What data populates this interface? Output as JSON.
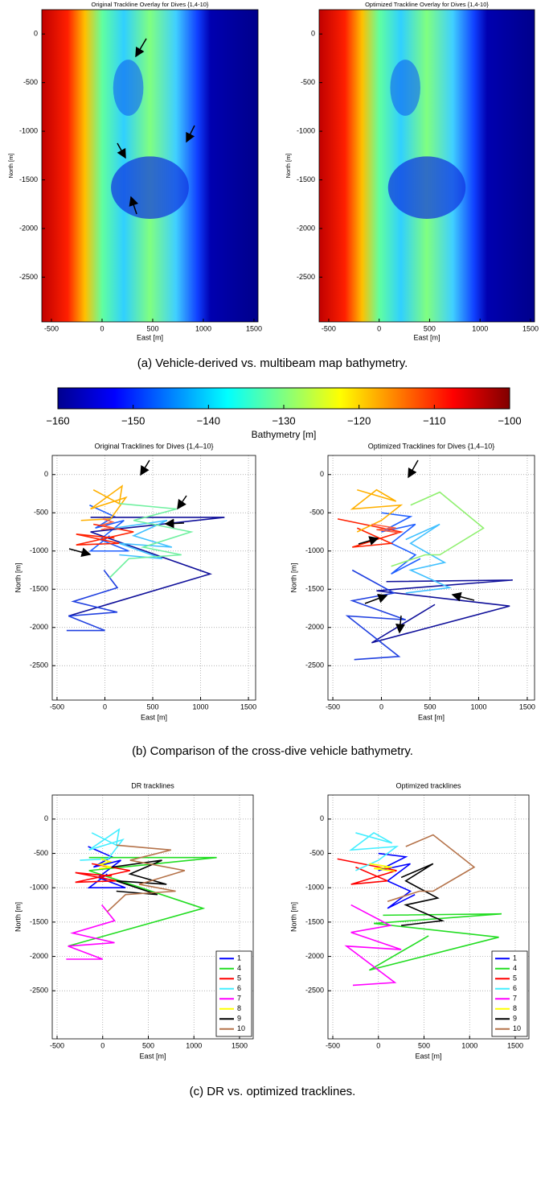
{
  "captions": [
    "(a)  Vehicle-derived vs. multibeam map bathymetry.",
    "(b)  Comparison of the cross-dive vehicle bathymetry.",
    "(c)  DR vs. optimized tracklines."
  ],
  "chart_data": [
    {
      "type": "map",
      "title": "Original Trackline Overlay for Dives {1,4-10}",
      "xlabel": "East [m]",
      "ylabel": "North [m]",
      "xlim": [
        -595,
        1540
      ],
      "ylim": [
        -2960,
        250
      ],
      "xticks": [
        -500,
        0,
        500,
        1000,
        1500
      ],
      "yticks": [
        0,
        -500,
        -1000,
        -1500,
        -2000,
        -2500
      ]
    },
    {
      "type": "map",
      "title": "Optimized Trackline Overlay for Dives {1,4-10}",
      "xlabel": "East [m]",
      "ylabel": "North [m]",
      "xlim": [
        -595,
        1540
      ],
      "ylim": [
        -2960,
        250
      ],
      "xticks": [
        -500,
        0,
        500,
        1000,
        1500
      ],
      "yticks": [
        0,
        -500,
        -1000,
        -1500,
        -2000,
        -2500
      ]
    },
    {
      "type": "colorbar",
      "xlabel": "Bathymetry [m]",
      "xlim": [
        -160,
        -100
      ],
      "xticks": [
        {
          "value": -160,
          "label": "−160"
        },
        {
          "value": -150,
          "label": "−150"
        },
        {
          "value": -140,
          "label": "−140"
        },
        {
          "value": -130,
          "label": "−130"
        },
        {
          "value": -120,
          "label": "−120"
        },
        {
          "value": -110,
          "label": "−110"
        },
        {
          "value": -100,
          "label": "−100"
        }
      ],
      "colors": [
        "#00008f",
        "#0000ff",
        "#0080ff",
        "#00ffff",
        "#80ff80",
        "#ffff00",
        "#ff8000",
        "#ff0000",
        "#800000"
      ]
    },
    {
      "type": "line",
      "title": "Original Tracklines for Dives {1,4–10}",
      "xlabel": "East [m]",
      "ylabel": "North [m]",
      "grid": true,
      "xlim": [
        -550,
        1575
      ],
      "ylim": [
        -2950,
        250
      ],
      "xticks": [
        -500,
        0,
        500,
        1000,
        1500
      ],
      "yticks": [
        0,
        -500,
        -1000,
        -1500,
        -2000,
        -2500
      ],
      "series": [
        {
          "color": "#2060ff",
          "x": [
            -160,
            100,
            -100,
            200,
            -50,
            250,
            -150,
            50
          ],
          "values": [
            -400,
            -550,
            -700,
            -600,
            -850,
            -1000,
            -1000,
            -800
          ]
        },
        {
          "color": "#10109a",
          "x": [
            -150,
            1250,
            -150,
            1100,
            -380
          ],
          "values": [
            -560,
            -560,
            -750,
            -1300,
            -1850
          ]
        },
        {
          "color": "#ff2000",
          "x": [
            -120,
            300,
            -300,
            150,
            -300,
            100
          ],
          "values": [
            -650,
            -750,
            -920,
            -900,
            -780,
            -830
          ]
        },
        {
          "color": "#ffb000",
          "x": [
            -120,
            150,
            180,
            -150,
            220,
            60,
            -250
          ],
          "values": [
            -200,
            -380,
            -150,
            -450,
            -300,
            -580,
            -600
          ]
        },
        {
          "color": "#2040e0",
          "x": [
            -10,
            130,
            -330,
            130,
            -380,
            0,
            -400
          ],
          "values": [
            -1250,
            -1480,
            -1660,
            -1800,
            -1850,
            -2040,
            -2040
          ]
        },
        {
          "color": "#ff6040",
          "x": [
            -20,
            80,
            -30,
            90,
            -40
          ],
          "values": [
            -580,
            -620,
            -660,
            -700,
            -720
          ]
        },
        {
          "color": "#40c0ff",
          "x": [
            100,
            650,
            300,
            700,
            150,
            600,
            150
          ],
          "values": [
            -700,
            -600,
            -800,
            -950,
            -900,
            -1100,
            -1050
          ]
        },
        {
          "color": "#70f0a0",
          "x": [
            150,
            750,
            300,
            900,
            400,
            800,
            250,
            50
          ],
          "values": [
            -380,
            -450,
            -600,
            -750,
            -950,
            -1050,
            -1100,
            -1350
          ]
        }
      ]
    },
    {
      "type": "line",
      "title": "Optimized Tracklines for Dives {1,4–10}",
      "xlabel": "East [m]",
      "ylabel": "North [m]",
      "grid": true,
      "xlim": [
        -550,
        1575
      ],
      "ylim": [
        -2950,
        250
      ],
      "xticks": [
        -500,
        0,
        500,
        1000,
        1500
      ],
      "yticks": [
        0,
        -500,
        -1000,
        -1500,
        -2000,
        -2500
      ],
      "series": [
        {
          "color": "#2060ff",
          "x": [
            0,
            300,
            0,
            350,
            100,
            350,
            100,
            400
          ],
          "values": [
            -500,
            -550,
            -750,
            -650,
            -900,
            -1050,
            -1300,
            -1100
          ]
        },
        {
          "color": "#10109a",
          "x": [
            50,
            1350,
            -50,
            1320,
            -100,
            550
          ],
          "values": [
            -1400,
            -1380,
            -1520,
            -1720,
            -2200,
            -1700
          ]
        },
        {
          "color": "#ff2000",
          "x": [
            -450,
            200,
            -300,
            100,
            -250
          ],
          "values": [
            -580,
            -750,
            -950,
            -900,
            -700
          ]
        },
        {
          "color": "#ffb000",
          "x": [
            -250,
            150,
            -50,
            -300,
            200,
            0,
            -250
          ],
          "values": [
            -200,
            -350,
            -200,
            -450,
            -400,
            -600,
            -750
          ]
        },
        {
          "color": "#2040e0",
          "x": [
            -300,
            130,
            -300,
            250,
            -350,
            180,
            -280
          ],
          "values": [
            -1250,
            -1550,
            -1650,
            -1900,
            -1850,
            -2380,
            -2420
          ]
        },
        {
          "color": "#ff6040",
          "x": [
            -100,
            150,
            -50,
            180
          ],
          "values": [
            -650,
            -700,
            -720,
            -760
          ]
        },
        {
          "color": "#40c0ff",
          "x": [
            250,
            600,
            300,
            650,
            300,
            700,
            250
          ],
          "values": [
            -850,
            -650,
            -900,
            -1150,
            -1250,
            -1480,
            -1550
          ]
        },
        {
          "color": "#90f070",
          "x": [
            300,
            600,
            1050,
            600,
            450,
            100
          ],
          "values": [
            -400,
            -230,
            -700,
            -1050,
            -1050,
            -1200
          ]
        }
      ]
    },
    {
      "type": "line",
      "title": "DR tracklines",
      "xlabel": "East [m]",
      "ylabel": "North [m]",
      "grid": true,
      "legend": "lower right",
      "xlim": [
        -553,
        1650
      ],
      "ylim": [
        -3200,
        350
      ],
      "xticks": [
        -500,
        0,
        500,
        1000,
        1500
      ],
      "yticks": [
        0,
        -500,
        -1000,
        -1500,
        -2000,
        -2500
      ],
      "series": [
        {
          "name": "1",
          "color": "#0000ff",
          "x": [
            -160,
            100,
            -100,
            200,
            -50,
            250,
            -150,
            50
          ],
          "values": [
            -400,
            -550,
            -700,
            -600,
            -850,
            -1000,
            -1000,
            -800
          ]
        },
        {
          "name": "4",
          "color": "#22dd22",
          "x": [
            -150,
            1250,
            -150,
            1100,
            -380
          ],
          "values": [
            -560,
            -560,
            -750,
            -1300,
            -1850
          ]
        },
        {
          "name": "5",
          "color": "#ff0000",
          "x": [
            -120,
            300,
            -300,
            150,
            -300,
            100
          ],
          "values": [
            -650,
            -750,
            -920,
            -900,
            -780,
            -830
          ]
        },
        {
          "name": "6",
          "color": "#44eeff",
          "x": [
            -120,
            150,
            180,
            -150,
            220,
            60,
            -250
          ],
          "values": [
            -200,
            -380,
            -150,
            -450,
            -300,
            -580,
            -600
          ]
        },
        {
          "name": "7",
          "color": "#ff00ff",
          "x": [
            -10,
            130,
            -330,
            130,
            -380,
            0,
            -400
          ],
          "values": [
            -1250,
            -1480,
            -1660,
            -1800,
            -1850,
            -2040,
            -2040
          ]
        },
        {
          "name": "8",
          "color": "#ffff00",
          "x": [
            -20,
            80,
            -30,
            90,
            -40
          ],
          "values": [
            -580,
            -620,
            -660,
            -700,
            -720
          ]
        },
        {
          "name": "9",
          "color": "#000000",
          "x": [
            100,
            650,
            300,
            700,
            150,
            600,
            150
          ],
          "values": [
            -700,
            -600,
            -800,
            -950,
            -900,
            -1100,
            -1050
          ]
        },
        {
          "name": "10",
          "color": "#b5734a",
          "x": [
            150,
            750,
            300,
            900,
            400,
            800,
            250,
            50
          ],
          "values": [
            -380,
            -450,
            -600,
            -750,
            -950,
            -1050,
            -1100,
            -1350
          ]
        }
      ]
    },
    {
      "type": "line",
      "title": "Optimized tracklines",
      "xlabel": "East [m]",
      "ylabel": "North [m]",
      "grid": true,
      "legend": "lower right",
      "xlim": [
        -553,
        1650
      ],
      "ylim": [
        -3200,
        350
      ],
      "xticks": [
        -500,
        0,
        500,
        1000,
        1500
      ],
      "yticks": [
        0,
        -500,
        -1000,
        -1500,
        -2000,
        -2500
      ],
      "series": [
        {
          "name": "1",
          "color": "#0000ff",
          "x": [
            0,
            300,
            0,
            350,
            100,
            350,
            100,
            400
          ],
          "values": [
            -500,
            -550,
            -750,
            -650,
            -900,
            -1050,
            -1300,
            -1100
          ]
        },
        {
          "name": "4",
          "color": "#22dd22",
          "x": [
            50,
            1350,
            -50,
            1320,
            -100,
            550
          ],
          "values": [
            -1400,
            -1380,
            -1520,
            -1720,
            -2200,
            -1700
          ]
        },
        {
          "name": "5",
          "color": "#ff0000",
          "x": [
            -450,
            200,
            -300,
            100,
            -250
          ],
          "values": [
            -580,
            -750,
            -950,
            -900,
            -700
          ]
        },
        {
          "name": "6",
          "color": "#44eeff",
          "x": [
            -250,
            150,
            -50,
            -300,
            200,
            0,
            -250
          ],
          "values": [
            -200,
            -350,
            -200,
            -450,
            -400,
            -600,
            -750
          ]
        },
        {
          "name": "7",
          "color": "#ff00ff",
          "x": [
            -300,
            130,
            -300,
            250,
            -350,
            180,
            -280
          ],
          "values": [
            -1250,
            -1550,
            -1650,
            -1900,
            -1850,
            -2380,
            -2420
          ]
        },
        {
          "name": "8",
          "color": "#ffff00",
          "x": [
            -100,
            150,
            -50,
            180
          ],
          "values": [
            -650,
            -700,
            -720,
            -760
          ]
        },
        {
          "name": "9",
          "color": "#000000",
          "x": [
            250,
            600,
            300,
            650,
            300,
            700,
            250
          ],
          "values": [
            -850,
            -650,
            -900,
            -1150,
            -1250,
            -1480,
            -1550
          ]
        },
        {
          "name": "10",
          "color": "#b5734a",
          "x": [
            300,
            600,
            1050,
            600,
            450,
            100
          ],
          "values": [
            -400,
            -230,
            -700,
            -1050,
            -1050,
            -1200
          ]
        }
      ]
    }
  ]
}
